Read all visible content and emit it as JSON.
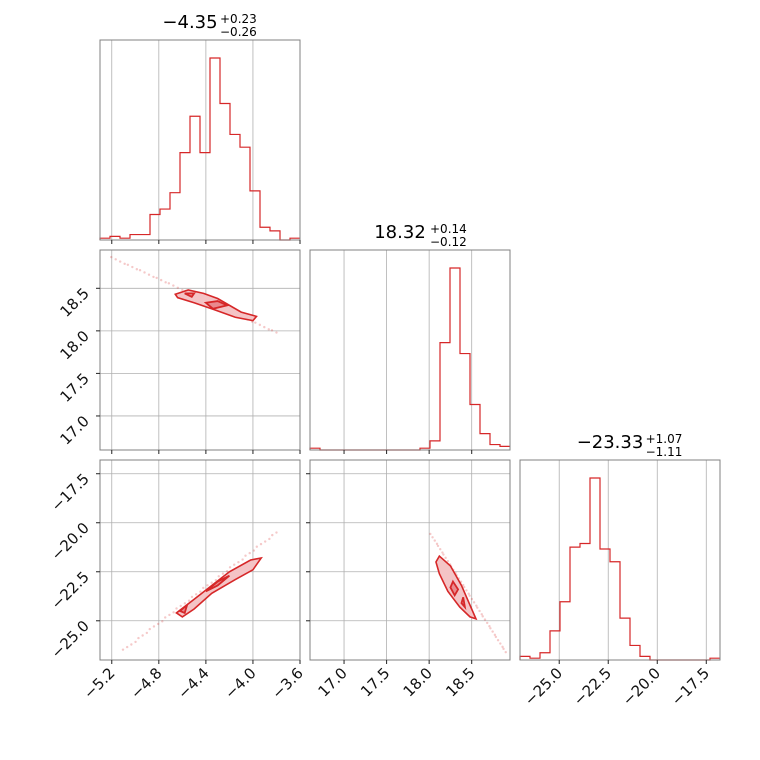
{
  "chart_data": {
    "type": "corner",
    "colors": {
      "accent": "#d62728",
      "fill": "#f4c4c6",
      "grid": "#b0b0b0"
    },
    "parameters": [
      {
        "title": {
          "main": "−4.35",
          "sup": "+0.23",
          "sub": "−0.26"
        },
        "range": [
          -5.3,
          -3.6
        ],
        "ticks": [
          -5.2,
          -4.8,
          -4.4,
          -4.0,
          -3.6
        ],
        "tick_labels": [
          "−5.2",
          "−4.8",
          "−4.4",
          "−4.0",
          "−3.6"
        ],
        "hist": {
          "edges": [
            -5.3,
            -5.215,
            -5.13,
            -5.045,
            -4.96,
            -4.875,
            -4.79,
            -4.705,
            -4.62,
            -4.535,
            -4.45,
            -4.365,
            -4.28,
            -4.195,
            -4.11,
            -4.025,
            -3.94,
            -3.855,
            -3.77,
            -3.685,
            -3.6
          ],
          "counts": [
            1,
            2,
            1,
            3,
            3,
            14,
            17,
            26,
            48,
            68,
            48,
            100,
            75,
            58,
            51,
            27,
            7,
            5,
            0,
            1
          ]
        }
      },
      {
        "title": {
          "main": "18.32",
          "sup": "+0.14",
          "sub": "−0.12"
        },
        "range": [
          16.6,
          18.95
        ],
        "ticks": [
          17.0,
          17.5,
          18.0,
          18.5
        ],
        "tick_labels": [
          "17.0",
          "17.5",
          "18.0",
          "18.5"
        ],
        "hist": {
          "edges": [
            16.6,
            16.7175,
            16.835,
            16.9525,
            17.07,
            17.1875,
            17.305,
            17.4225,
            17.54,
            17.6575,
            17.775,
            17.8925,
            18.01,
            18.1275,
            18.245,
            18.3625,
            18.48,
            18.5975,
            18.715,
            18.8325,
            18.95
          ],
          "counts": [
            1,
            0,
            0,
            0,
            0,
            0,
            0,
            0,
            0,
            0,
            0,
            1,
            5,
            59,
            100,
            53,
            25,
            9,
            3,
            2
          ]
        }
      },
      {
        "title": {
          "main": "−23.33",
          "sup": "+1.07",
          "sub": "−1.11"
        },
        "range": [
          -27.0,
          -16.8
        ],
        "ticks": [
          -25.0,
          -22.5,
          -20.0,
          -17.5
        ],
        "tick_labels": [
          "−25.0",
          "−22.5",
          "−20.0",
          "−17.5"
        ],
        "hist": {
          "edges": [
            -27.0,
            -26.49,
            -25.98,
            -25.47,
            -24.96,
            -24.45,
            -23.94,
            -23.43,
            -22.92,
            -22.41,
            -21.9,
            -21.39,
            -20.88,
            -20.37,
            -19.86,
            -19.35,
            -18.84,
            -18.33,
            -17.82,
            -17.31,
            -16.8
          ],
          "counts": [
            2,
            1,
            4,
            16,
            32,
            62,
            64,
            100,
            61,
            54,
            23,
            8,
            2,
            0,
            0,
            0,
            0,
            0,
            0,
            1
          ]
        }
      }
    ],
    "pairs": [
      {
        "x_param": 0,
        "y_param": 1,
        "yticks": [
          17.0,
          17.5,
          18.0,
          18.5
        ],
        "ytick_labels": [
          "17.0",
          "17.5",
          "18.0",
          "18.5"
        ],
        "yrange": [
          16.6,
          18.95
        ],
        "scatter_line": [
          [
            -5.2,
            18.86
          ],
          [
            -3.8,
            17.98
          ]
        ],
        "contour_outer": [
          [
            -4.66,
            18.43
          ],
          [
            -4.55,
            18.48
          ],
          [
            -4.42,
            18.44
          ],
          [
            -4.3,
            18.38
          ],
          [
            -4.1,
            18.22
          ],
          [
            -3.97,
            18.17
          ],
          [
            -4.0,
            18.12
          ],
          [
            -4.15,
            18.16
          ],
          [
            -4.33,
            18.25
          ],
          [
            -4.5,
            18.33
          ],
          [
            -4.64,
            18.39
          ]
        ],
        "contour_inner": [
          [
            -4.4,
            18.33
          ],
          [
            -4.3,
            18.35
          ],
          [
            -4.22,
            18.3
          ],
          [
            -4.34,
            18.26
          ]
        ],
        "contour_core": [
          [
            -4.58,
            18.44
          ],
          [
            -4.5,
            18.44
          ],
          [
            -4.52,
            18.4
          ]
        ]
      },
      {
        "x_param": 0,
        "y_param": 2,
        "yticks": [
          -25.0,
          -22.5,
          -20.0,
          -17.5
        ],
        "ytick_labels": [
          "−25.0",
          "−22.5",
          "−20.0",
          "−17.5"
        ],
        "yrange": [
          -27.0,
          -16.8
        ],
        "scatter_line": [
          [
            -5.1,
            -26.5
          ],
          [
            -3.8,
            -20.5
          ]
        ],
        "contour_outer": [
          [
            -4.65,
            -24.6
          ],
          [
            -4.52,
            -24.0
          ],
          [
            -4.35,
            -23.2
          ],
          [
            -4.2,
            -22.5
          ],
          [
            -4.02,
            -21.9
          ],
          [
            -3.93,
            -21.8
          ],
          [
            -4.0,
            -22.4
          ],
          [
            -4.15,
            -22.9
          ],
          [
            -4.35,
            -23.6
          ],
          [
            -4.5,
            -24.4
          ],
          [
            -4.6,
            -24.8
          ]
        ],
        "contour_inner": [
          [
            -4.4,
            -23.5
          ],
          [
            -4.3,
            -23.0
          ],
          [
            -4.2,
            -22.7
          ],
          [
            -4.3,
            -23.2
          ]
        ],
        "contour_core": [
          [
            -4.62,
            -24.5
          ],
          [
            -4.56,
            -24.2
          ],
          [
            -4.58,
            -24.6
          ]
        ]
      },
      {
        "x_param": 1,
        "y_param": 2,
        "yticks": [
          -25.0,
          -22.5,
          -20.0,
          -17.5
        ],
        "ytick_labels": [
          "−25.0",
          "−22.5",
          "−20.0",
          "−17.5"
        ],
        "yrange": [
          -27.0,
          -16.8
        ],
        "scatter_line": [
          [
            18.02,
            -20.6
          ],
          [
            18.9,
            -26.6
          ]
        ],
        "contour_outer": [
          [
            18.12,
            -21.7
          ],
          [
            18.25,
            -22.2
          ],
          [
            18.38,
            -23.2
          ],
          [
            18.47,
            -24.1
          ],
          [
            18.55,
            -24.9
          ],
          [
            18.48,
            -24.8
          ],
          [
            18.36,
            -24.3
          ],
          [
            18.22,
            -23.5
          ],
          [
            18.12,
            -22.6
          ],
          [
            18.08,
            -22.0
          ]
        ],
        "contour_inner": [
          [
            18.28,
            -23.0
          ],
          [
            18.34,
            -23.4
          ],
          [
            18.3,
            -23.7
          ],
          [
            18.25,
            -23.3
          ]
        ],
        "contour_core": [
          [
            18.4,
            -23.8
          ],
          [
            18.42,
            -24.3
          ],
          [
            18.38,
            -24.1
          ]
        ]
      }
    ]
  }
}
